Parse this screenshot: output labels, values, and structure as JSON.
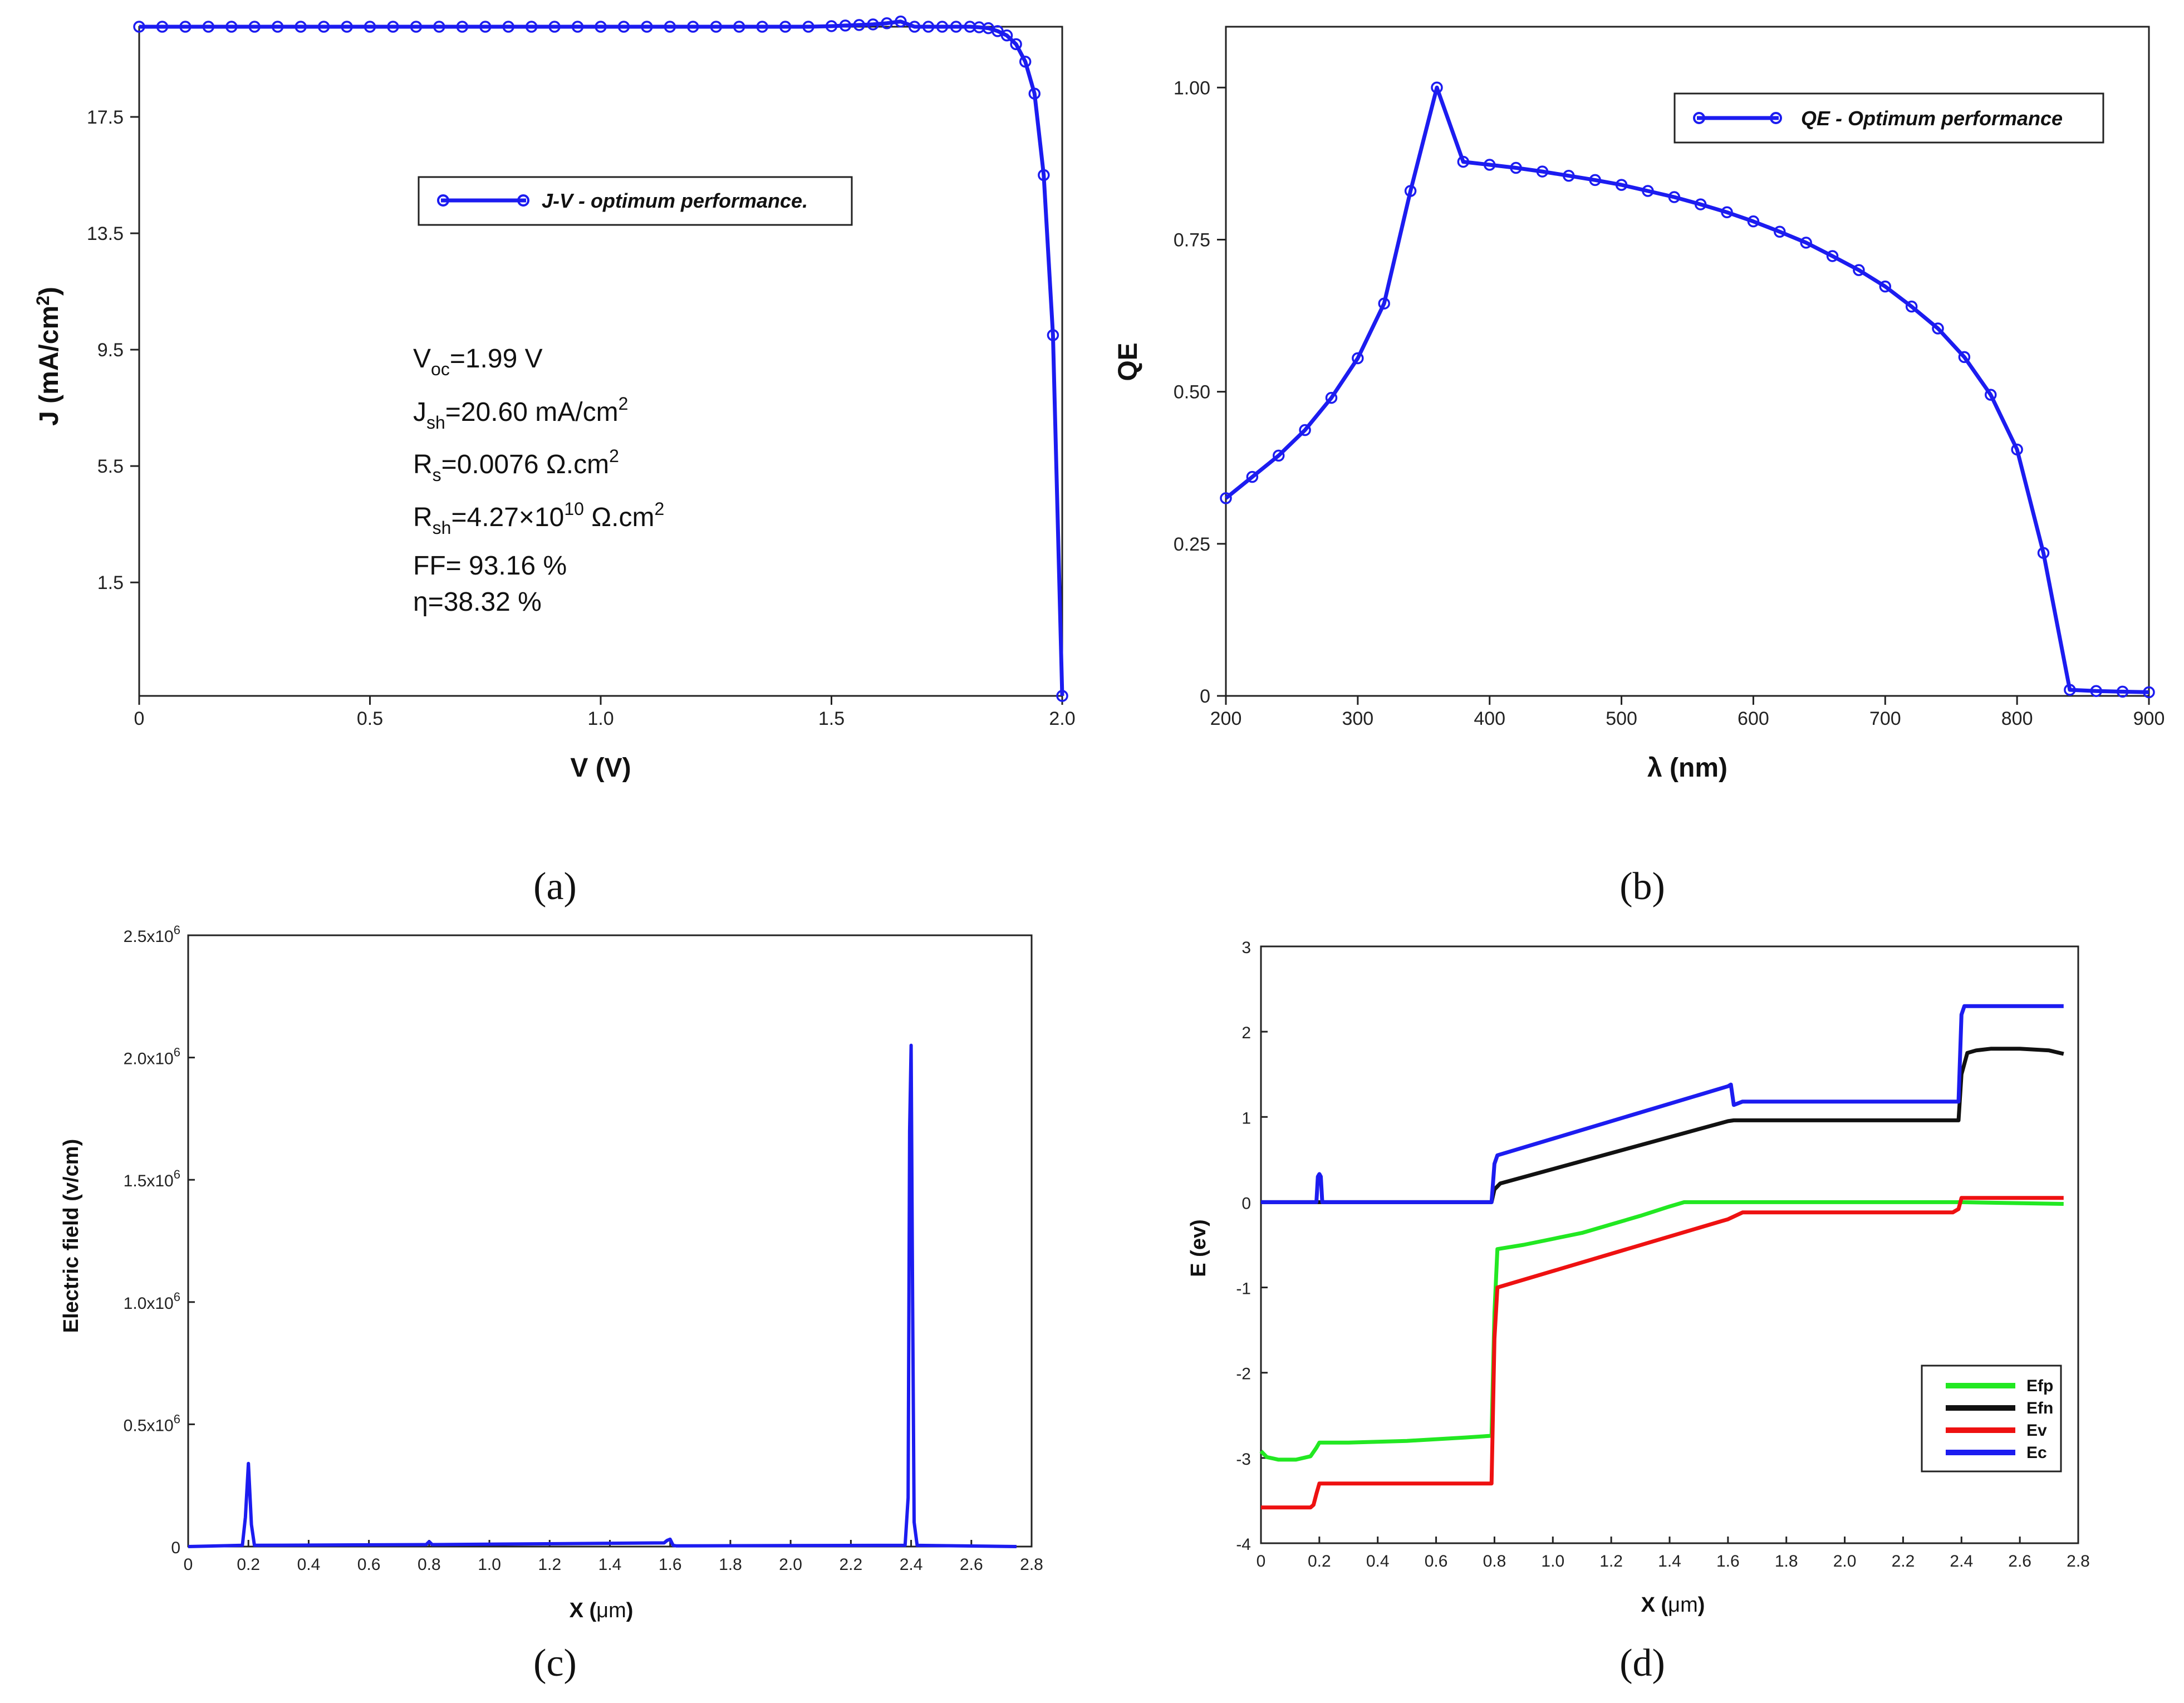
{
  "panels": {
    "a": "(a)",
    "b": "(b)",
    "c": "(c)",
    "d": "(d)"
  },
  "chart_data": [
    {
      "id": "a",
      "type": "line",
      "xlabel": "V (V)",
      "ylabel": "J (mA/cm²)",
      "ylabel_main": "J (mA/cm",
      "ylabel_sup": "2",
      "ylabel_end": ")",
      "xlim": [
        0,
        2.0
      ],
      "ylim": [
        -2.4,
        20.6
      ],
      "xticks": [
        0,
        0.5,
        1.0,
        1.5,
        2.0
      ],
      "xtick_labels": [
        "0",
        "0.5",
        "1.0",
        "1.5",
        "2.0"
      ],
      "yticks": [
        1.5,
        5.5,
        9.5,
        13.5,
        17.5
      ],
      "ytick_labels": [
        "1.5",
        "5.5",
        "9.5",
        "13.5",
        "17.5"
      ],
      "legend": "J-V - optimum performance.",
      "color": "#1c1cf0",
      "marker": "circle",
      "x": [
        0,
        0.05,
        0.1,
        0.15,
        0.2,
        0.25,
        0.3,
        0.35,
        0.4,
        0.45,
        0.5,
        0.55,
        0.6,
        0.65,
        0.7,
        0.75,
        0.8,
        0.85,
        0.9,
        0.95,
        1.0,
        1.05,
        1.1,
        1.15,
        1.2,
        1.25,
        1.3,
        1.35,
        1.4,
        1.45,
        1.5,
        1.53,
        1.56,
        1.59,
        1.62,
        1.65,
        1.68,
        1.71,
        1.74,
        1.77,
        1.8,
        1.82,
        1.84,
        1.86,
        1.88,
        1.9,
        1.92,
        1.94,
        1.96,
        1.98,
        2.0
      ],
      "y": [
        20.6,
        20.6,
        20.6,
        20.6,
        20.6,
        20.6,
        20.6,
        20.6,
        20.6,
        20.6,
        20.6,
        20.6,
        20.6,
        20.6,
        20.6,
        20.6,
        20.6,
        20.6,
        20.6,
        20.6,
        20.6,
        20.6,
        20.6,
        20.6,
        20.6,
        20.6,
        20.6,
        20.6,
        20.6,
        20.6,
        20.62,
        20.64,
        20.66,
        20.68,
        20.72,
        20.78,
        20.6,
        20.6,
        20.6,
        20.6,
        20.6,
        20.58,
        20.55,
        20.45,
        20.3,
        20.0,
        19.4,
        18.3,
        15.5,
        10.0,
        -2.4
      ],
      "annotations": {
        "voc": [
          "V",
          "oc",
          "=1.99 V"
        ],
        "jsh": [
          "J",
          "sh",
          "=20.60 mA/cm",
          "2"
        ],
        "rs": [
          "R",
          "s",
          "=0.0076 Ω.cm",
          "2"
        ],
        "rsh": [
          "R",
          "sh",
          "=4.27×10",
          "10",
          " Ω.cm",
          "2"
        ],
        "ff": "FF= 93.16 %",
        "eta": "η=38.32 %"
      }
    },
    {
      "id": "b",
      "type": "line",
      "xlabel": "λ (nm)",
      "ylabel": "QE",
      "xlim": [
        200,
        900
      ],
      "ylim": [
        0,
        1.1
      ],
      "xticks": [
        200,
        300,
        400,
        500,
        600,
        700,
        800,
        900
      ],
      "xtick_labels": [
        "200",
        "300",
        "400",
        "500",
        "600",
        "700",
        "800",
        "900"
      ],
      "yticks": [
        0,
        0.25,
        0.5,
        0.75,
        1.0
      ],
      "ytick_labels": [
        "0",
        "0.25",
        "0.50",
        "0.75",
        "1.00"
      ],
      "legend": "QE - Optimum performance",
      "color": "#1c1cf0",
      "marker": "circle",
      "x": [
        200,
        220,
        240,
        260,
        280,
        300,
        320,
        340,
        360,
        380,
        400,
        420,
        440,
        460,
        480,
        500,
        520,
        540,
        560,
        580,
        600,
        620,
        640,
        660,
        680,
        700,
        720,
        740,
        760,
        780,
        800,
        820,
        840,
        860,
        880,
        900
      ],
      "y": [
        0.325,
        0.36,
        0.395,
        0.437,
        0.49,
        0.555,
        0.645,
        0.83,
        1.0,
        0.878,
        0.873,
        0.868,
        0.862,
        0.855,
        0.848,
        0.84,
        0.83,
        0.82,
        0.808,
        0.795,
        0.78,
        0.763,
        0.745,
        0.723,
        0.7,
        0.673,
        0.64,
        0.604,
        0.557,
        0.495,
        0.405,
        0.235,
        0.01,
        0.008,
        0.007,
        0.006
      ]
    },
    {
      "id": "c",
      "type": "line",
      "xlabel_main": "X (",
      "xlabel_unit": "μm",
      "xlabel_end": ")",
      "ylabel": "Electric field (v/cm)",
      "xlim": [
        0,
        2.8
      ],
      "ylim": [
        0,
        2500000
      ],
      "xticks": [
        0,
        0.2,
        0.4,
        0.6,
        0.8,
        1.0,
        1.2,
        1.4,
        1.6,
        1.8,
        2.0,
        2.2,
        2.4,
        2.6,
        2.8
      ],
      "xtick_labels": [
        "0",
        "0.2",
        "0.4",
        "0.6",
        "0.8",
        "1.0",
        "1.2",
        "1.4",
        "1.6",
        "1.8",
        "2.0",
        "2.2",
        "2.4",
        "2.6",
        "2.8"
      ],
      "yticks": [
        0,
        500000,
        1000000,
        1500000,
        2000000,
        2500000
      ],
      "ytick_labels": [
        [
          "0",
          ""
        ],
        [
          "0.5x10",
          "6"
        ],
        [
          "1.0x10",
          "6"
        ],
        [
          "1.5x10",
          "6"
        ],
        [
          "2.0x10",
          "6"
        ],
        [
          "2.5x10",
          "6"
        ]
      ],
      "color": "#1c1cf0",
      "x": [
        0,
        0.18,
        0.19,
        0.2,
        0.21,
        0.22,
        0.79,
        0.8,
        0.81,
        1.58,
        1.59,
        1.6,
        1.61,
        1.62,
        2.38,
        2.39,
        2.395,
        2.4,
        2.405,
        2.41,
        2.42,
        2.75
      ],
      "y": [
        0,
        5000,
        120000,
        340000,
        90000,
        5000,
        8000,
        20000,
        8000,
        15000,
        25000,
        30000,
        5000,
        3000,
        5000,
        200000,
        1700000,
        2050000,
        1000000,
        100000,
        5000,
        0
      ]
    },
    {
      "id": "d",
      "type": "line",
      "xlabel_main": "X (",
      "xlabel_unit": "μm",
      "xlabel_end": ")",
      "ylabel": "E (ev)",
      "xlim": [
        0,
        2.8
      ],
      "ylim": [
        -4,
        3
      ],
      "xticks": [
        0,
        0.2,
        0.4,
        0.6,
        0.8,
        1.0,
        1.2,
        1.4,
        1.6,
        1.8,
        2.0,
        2.2,
        2.4,
        2.6,
        2.8
      ],
      "xtick_labels": [
        "0",
        "0.2",
        "0.4",
        "0.6",
        "0.8",
        "1.0",
        "1.2",
        "1.4",
        "1.6",
        "1.8",
        "2.0",
        "2.2",
        "2.4",
        "2.6",
        "2.8"
      ],
      "yticks": [
        -4,
        -3,
        -2,
        -1,
        0,
        1,
        2,
        3
      ],
      "ytick_labels": [
        "-4",
        "-3",
        "-2",
        "-1",
        "0",
        "1",
        "2",
        "3"
      ],
      "series": [
        {
          "name": "Efp",
          "color": "#22e822",
          "x": [
            0,
            0.02,
            0.06,
            0.12,
            0.17,
            0.19,
            0.2,
            0.3,
            0.5,
            0.7,
            0.79,
            0.8,
            0.81,
            0.9,
            1.1,
            1.3,
            1.4,
            1.45,
            1.6,
            2.0,
            2.4,
            2.75
          ],
          "y": [
            -2.92,
            -2.99,
            -3.02,
            -3.02,
            -2.98,
            -2.88,
            -2.82,
            -2.82,
            -2.8,
            -2.76,
            -2.74,
            -1.3,
            -0.55,
            -0.5,
            -0.36,
            -0.16,
            -0.05,
            0,
            0,
            0,
            0,
            -0.02
          ]
        },
        {
          "name": "Efn",
          "color": "#111111",
          "x": [
            0,
            0.5,
            0.79,
            0.8,
            0.82,
            1.6,
            1.62,
            2.39,
            2.4,
            2.42,
            2.45,
            2.5,
            2.6,
            2.7,
            2.75
          ],
          "y": [
            0,
            0,
            0,
            0.15,
            0.22,
            0.95,
            0.96,
            0.96,
            1.5,
            1.75,
            1.78,
            1.8,
            1.8,
            1.78,
            1.74
          ]
        },
        {
          "name": "Ev",
          "color": "#ee1111",
          "x": [
            0,
            0.17,
            0.18,
            0.19,
            0.2,
            0.79,
            0.8,
            0.81,
            1.58,
            1.6,
            1.65,
            2.37,
            2.39,
            2.4,
            2.75
          ],
          "y": [
            -3.58,
            -3.58,
            -3.55,
            -3.42,
            -3.3,
            -3.3,
            -1.6,
            -1.0,
            -0.22,
            -0.2,
            -0.12,
            -0.12,
            -0.08,
            0.05,
            0.05
          ]
        },
        {
          "name": "Ec",
          "color": "#1c1cf0",
          "x": [
            0,
            0.19,
            0.195,
            0.2,
            0.205,
            0.21,
            0.79,
            0.8,
            0.81,
            1.6,
            1.61,
            1.62,
            1.65,
            2.39,
            2.4,
            2.41,
            2.75
          ],
          "y": [
            0,
            0,
            0.3,
            0.33,
            0.3,
            0,
            0,
            0.45,
            0.55,
            1.36,
            1.38,
            1.14,
            1.18,
            1.18,
            2.2,
            2.3,
            2.3
          ]
        }
      ]
    }
  ]
}
